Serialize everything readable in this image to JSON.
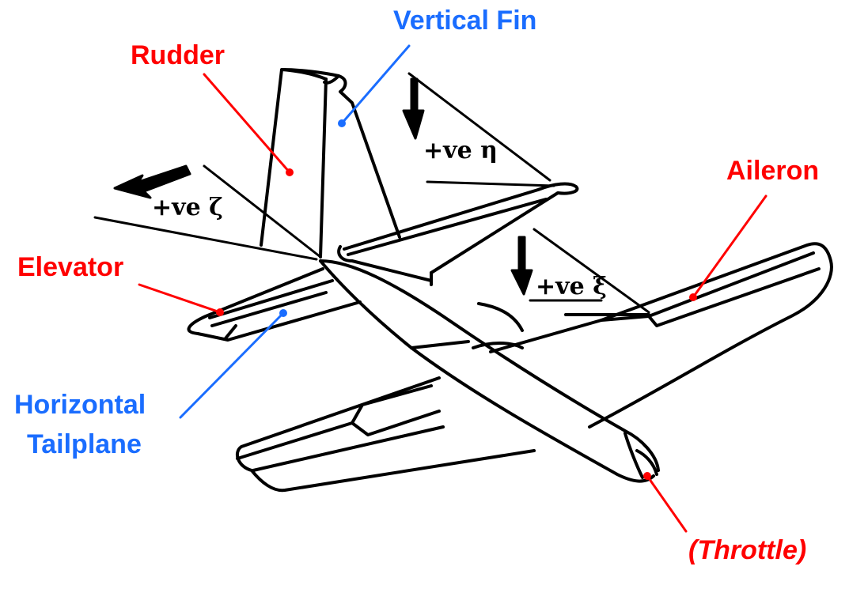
{
  "colors": {
    "red": "#ff0000",
    "blue": "#1a6dff",
    "ink": "#000000"
  },
  "labels": {
    "vertical_fin": "Vertical Fin",
    "rudder": "Rudder",
    "aileron": "Aileron",
    "elevator": "Elevator",
    "horizontal_tailplane_line1": "Horizontal",
    "horizontal_tailplane_line2": "Tailplane",
    "throttle": "(Throttle)"
  },
  "handwritten": {
    "zeta": "+ve ζ",
    "eta": "+ve η",
    "xi": "+ve ξ"
  }
}
